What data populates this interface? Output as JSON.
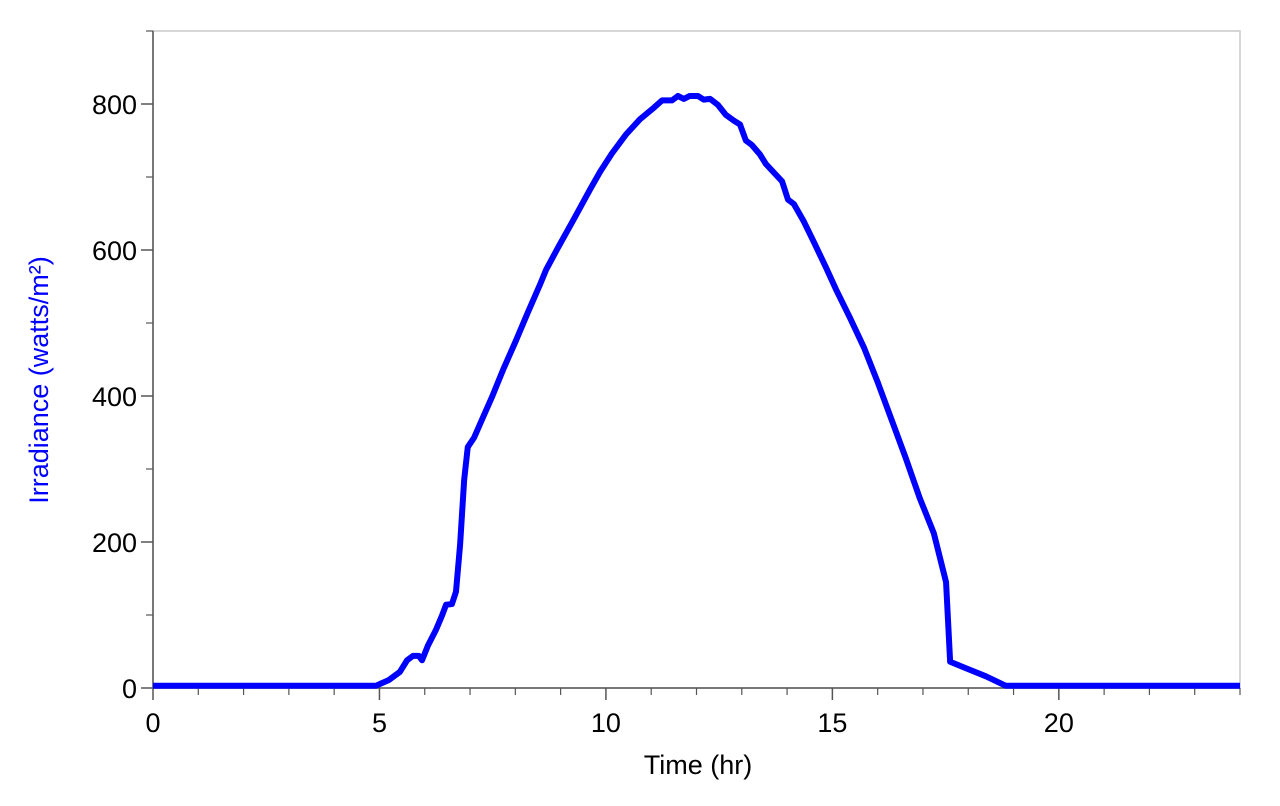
{
  "chart_data": {
    "type": "line",
    "x_label": "Time (hr)",
    "y_label": "Irradiance (watts/m²)",
    "xlim": [
      0,
      24
    ],
    "xticks": [
      0,
      5,
      10,
      15,
      20
    ],
    "x_minor_ticks": [
      1,
      2,
      3,
      4,
      6,
      7,
      8,
      9,
      11,
      12,
      13,
      14,
      16,
      17,
      18,
      19,
      21,
      22,
      23,
      24
    ],
    "ylim": [
      0,
      900
    ],
    "yticks": [
      0,
      200,
      400,
      600,
      800
    ],
    "y_minor_ticks": [
      100,
      300,
      500,
      700,
      900
    ],
    "series": [
      {
        "color": "#0000ff",
        "x": [
          0,
          4.92,
          5.21,
          5.45,
          5.61,
          5.74,
          5.87,
          5.94,
          6.07,
          6.25,
          6.38,
          6.47,
          6.6,
          6.69,
          6.78,
          6.87,
          6.95,
          7.09,
          7.28,
          7.48,
          7.73,
          8.0,
          8.28,
          8.54,
          8.68,
          8.94,
          9.29,
          9.65,
          9.87,
          10.13,
          10.44,
          10.75,
          11.06,
          11.24,
          11.46,
          11.59,
          11.72,
          11.85,
          12.03,
          12.16,
          12.3,
          12.47,
          12.65,
          12.83,
          12.96,
          13.09,
          13.22,
          13.4,
          13.53,
          13.71,
          13.89,
          14.02,
          14.15,
          14.37,
          14.59,
          14.86,
          15.08,
          15.39,
          15.7,
          16.0,
          16.31,
          16.62,
          16.93,
          17.24,
          17.51,
          17.6,
          17.95,
          18.39,
          18.83,
          24
        ],
        "values": [
          3,
          3,
          11,
          22,
          38,
          44,
          44,
          38,
          58,
          80,
          99,
          114,
          115,
          132,
          196,
          285,
          330,
          343,
          370,
          398,
          436,
          474,
          515,
          552,
          573,
          603,
          642,
          683,
          707,
          732,
          758,
          779,
          795,
          805,
          805,
          811,
          807,
          811,
          811,
          806,
          807,
          799,
          785,
          777,
          772,
          750,
          744,
          731,
          718,
          706,
          694,
          669,
          663,
          639,
          611,
          576,
          546,
          507,
          466,
          419,
          367,
          315,
          260,
          212,
          145,
          36,
          27,
          16,
          3,
          3
        ]
      }
    ]
  }
}
